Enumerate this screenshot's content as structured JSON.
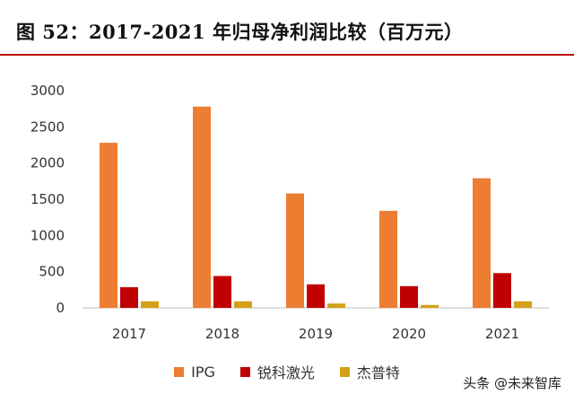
{
  "header": {
    "title": "图 52：2017-2021 年归母净利润比较（百万元）"
  },
  "chart_data": {
    "type": "bar",
    "categories": [
      "2017",
      "2018",
      "2019",
      "2020",
      "2021"
    ],
    "series": [
      {
        "name": "IPG",
        "color": "#ed7d31",
        "values": [
          2280,
          2780,
          1580,
          1340,
          1790
        ]
      },
      {
        "name": "锐科激光",
        "color": "#c00000",
        "values": [
          285,
          440,
          325,
          300,
          480
        ]
      },
      {
        "name": "杰普特",
        "color": "#d4a017",
        "values": [
          90,
          90,
          60,
          40,
          90
        ]
      }
    ],
    "yticks": [
      "0",
      "500",
      "1000",
      "1500",
      "2000",
      "2500",
      "3000"
    ],
    "ylim": [
      0,
      3000
    ],
    "grid": false,
    "legend_position": "bottom"
  },
  "watermark": "头条 @未来智库"
}
